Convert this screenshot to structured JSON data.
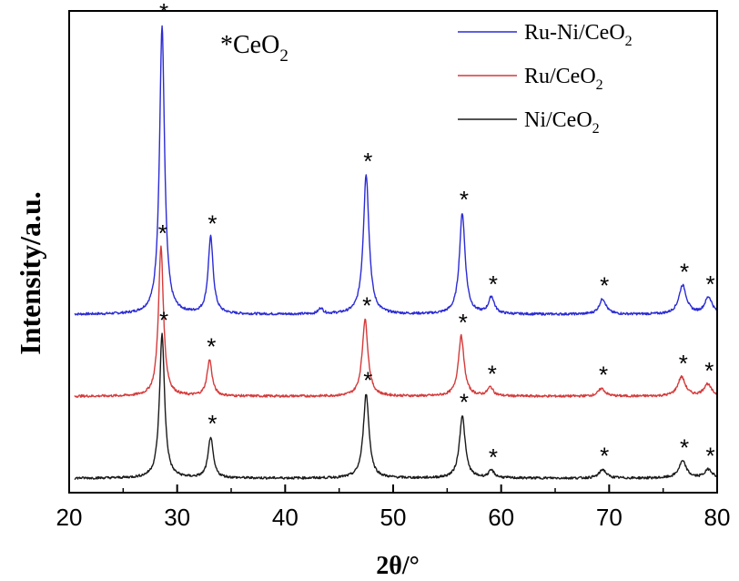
{
  "chart_data": {
    "type": "line",
    "title": "",
    "xlabel": "2θ/°",
    "ylabel": "Intensity/a.u.",
    "xlim": [
      20,
      80
    ],
    "x_ticks": [
      20,
      30,
      40,
      50,
      60,
      70,
      80
    ],
    "y_ticks_shown": false,
    "grid": false,
    "legend_position": "top-right",
    "annotation": {
      "symbol": "*",
      "text": "CeO",
      "subscript": "2"
    },
    "peak_marker": "*",
    "series": [
      {
        "name": "Ru-Ni/CeO",
        "name_subscript": "2",
        "color": "#2b2bd6",
        "baseline": 0.37,
        "peaks": [
          {
            "pos": 28.6,
            "height": 0.6,
            "width": 0.28,
            "starred": true
          },
          {
            "pos": 33.1,
            "height": 0.16,
            "width": 0.28,
            "starred": true
          },
          {
            "pos": 43.3,
            "height": 0.012,
            "width": 0.25,
            "starred": false
          },
          {
            "pos": 47.5,
            "height": 0.29,
            "width": 0.32,
            "starred": true
          },
          {
            "pos": 56.4,
            "height": 0.21,
            "width": 0.32,
            "starred": true
          },
          {
            "pos": 59.1,
            "height": 0.035,
            "width": 0.32,
            "starred": true
          },
          {
            "pos": 69.4,
            "height": 0.032,
            "width": 0.38,
            "starred": true
          },
          {
            "pos": 76.8,
            "height": 0.06,
            "width": 0.42,
            "starred": true
          },
          {
            "pos": 79.2,
            "height": 0.035,
            "width": 0.42,
            "starred": true
          }
        ]
      },
      {
        "name": "Ru/CeO",
        "name_subscript": "2",
        "color": "#d63a3a",
        "baseline": 0.2,
        "peaks": [
          {
            "pos": 28.5,
            "height": 0.31,
            "width": 0.28,
            "starred": true
          },
          {
            "pos": 33.0,
            "height": 0.075,
            "width": 0.28,
            "starred": true
          },
          {
            "pos": 47.4,
            "height": 0.16,
            "width": 0.32,
            "starred": true
          },
          {
            "pos": 56.3,
            "height": 0.125,
            "width": 0.32,
            "starred": true
          },
          {
            "pos": 59.0,
            "height": 0.018,
            "width": 0.32,
            "starred": true
          },
          {
            "pos": 69.3,
            "height": 0.016,
            "width": 0.38,
            "starred": true
          },
          {
            "pos": 76.7,
            "height": 0.04,
            "width": 0.42,
            "starred": true
          },
          {
            "pos": 79.1,
            "height": 0.025,
            "width": 0.42,
            "starred": true
          }
        ]
      },
      {
        "name": "Ni/CeO",
        "name_subscript": "2",
        "color": "#1a1a1a",
        "baseline": 0.03,
        "peaks": [
          {
            "pos": 28.6,
            "height": 0.3,
            "width": 0.28,
            "starred": true
          },
          {
            "pos": 33.1,
            "height": 0.085,
            "width": 0.28,
            "starred": true
          },
          {
            "pos": 47.5,
            "height": 0.175,
            "width": 0.32,
            "starred": true
          },
          {
            "pos": 56.4,
            "height": 0.13,
            "width": 0.32,
            "starred": true
          },
          {
            "pos": 59.1,
            "height": 0.015,
            "width": 0.32,
            "starred": true
          },
          {
            "pos": 69.4,
            "height": 0.018,
            "width": 0.38,
            "starred": true
          },
          {
            "pos": 76.8,
            "height": 0.035,
            "width": 0.42,
            "starred": true
          },
          {
            "pos": 79.2,
            "height": 0.018,
            "width": 0.42,
            "starred": true
          }
        ]
      }
    ]
  }
}
